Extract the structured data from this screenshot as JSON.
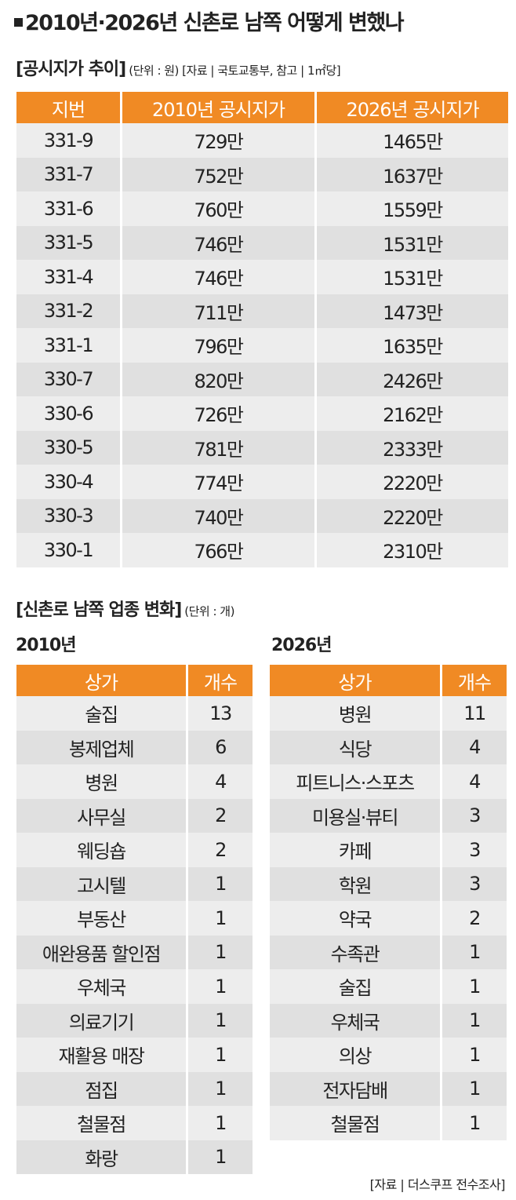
{
  "title": "2010년·2026년 신촌로 남쪽 어떻게 변했나",
  "price_section": {
    "heading": "[공시지가 추이]",
    "note": "(단위 : 원) [자료 | 국토교통부, 참고 | 1㎡당]",
    "columns": [
      "지번",
      "2010년 공시지가",
      "2026년 공시지가"
    ],
    "rows": [
      [
        "331-9",
        "729만",
        "1465만"
      ],
      [
        "331-7",
        "752만",
        "1637만"
      ],
      [
        "331-6",
        "760만",
        "1559만"
      ],
      [
        "331-5",
        "746만",
        "1531만"
      ],
      [
        "331-4",
        "746만",
        "1531만"
      ],
      [
        "331-2",
        "711만",
        "1473만"
      ],
      [
        "331-1",
        "796만",
        "1635만"
      ],
      [
        "330-7",
        "820만",
        "2426만"
      ],
      [
        "330-6",
        "726만",
        "2162만"
      ],
      [
        "330-5",
        "781만",
        "2333만"
      ],
      [
        "330-4",
        "774만",
        "2220만"
      ],
      [
        "330-3",
        "740만",
        "2220만"
      ],
      [
        "330-1",
        "766만",
        "2310만"
      ]
    ]
  },
  "business_section": {
    "heading": "[신촌로 남쪽 업종 변화]",
    "note": "(단위 : 개)",
    "table_2010": {
      "year_label": "2010년",
      "columns": [
        "상가",
        "개수"
      ],
      "rows": [
        [
          "술집",
          "13"
        ],
        [
          "봉제업체",
          "6"
        ],
        [
          "병원",
          "4"
        ],
        [
          "사무실",
          "2"
        ],
        [
          "웨딩숍",
          "2"
        ],
        [
          "고시텔",
          "1"
        ],
        [
          "부동산",
          "1"
        ],
        [
          "애완용품 할인점",
          "1"
        ],
        [
          "우체국",
          "1"
        ],
        [
          "의료기기",
          "1"
        ],
        [
          "재활용 매장",
          "1"
        ],
        [
          "점집",
          "1"
        ],
        [
          "철물점",
          "1"
        ],
        [
          "화랑",
          "1"
        ]
      ]
    },
    "table_2026": {
      "year_label": "2026년",
      "columns": [
        "상가",
        "개수"
      ],
      "rows": [
        [
          "병원",
          "11"
        ],
        [
          "식당",
          "4"
        ],
        [
          "피트니스·스포츠",
          "4"
        ],
        [
          "미용실·뷰티",
          "3"
        ],
        [
          "카페",
          "3"
        ],
        [
          "학원",
          "3"
        ],
        [
          "약국",
          "2"
        ],
        [
          "수족관",
          "1"
        ],
        [
          "술집",
          "1"
        ],
        [
          "우체국",
          "1"
        ],
        [
          "의상",
          "1"
        ],
        [
          "전자담배",
          "1"
        ],
        [
          "철물점",
          "1"
        ]
      ]
    }
  },
  "source": "[자료 | 더스쿠프 전수조사]",
  "colors": {
    "header_orange": "#f08a24",
    "row_light": "#ededed",
    "row_dark": "#e0e0e0"
  }
}
